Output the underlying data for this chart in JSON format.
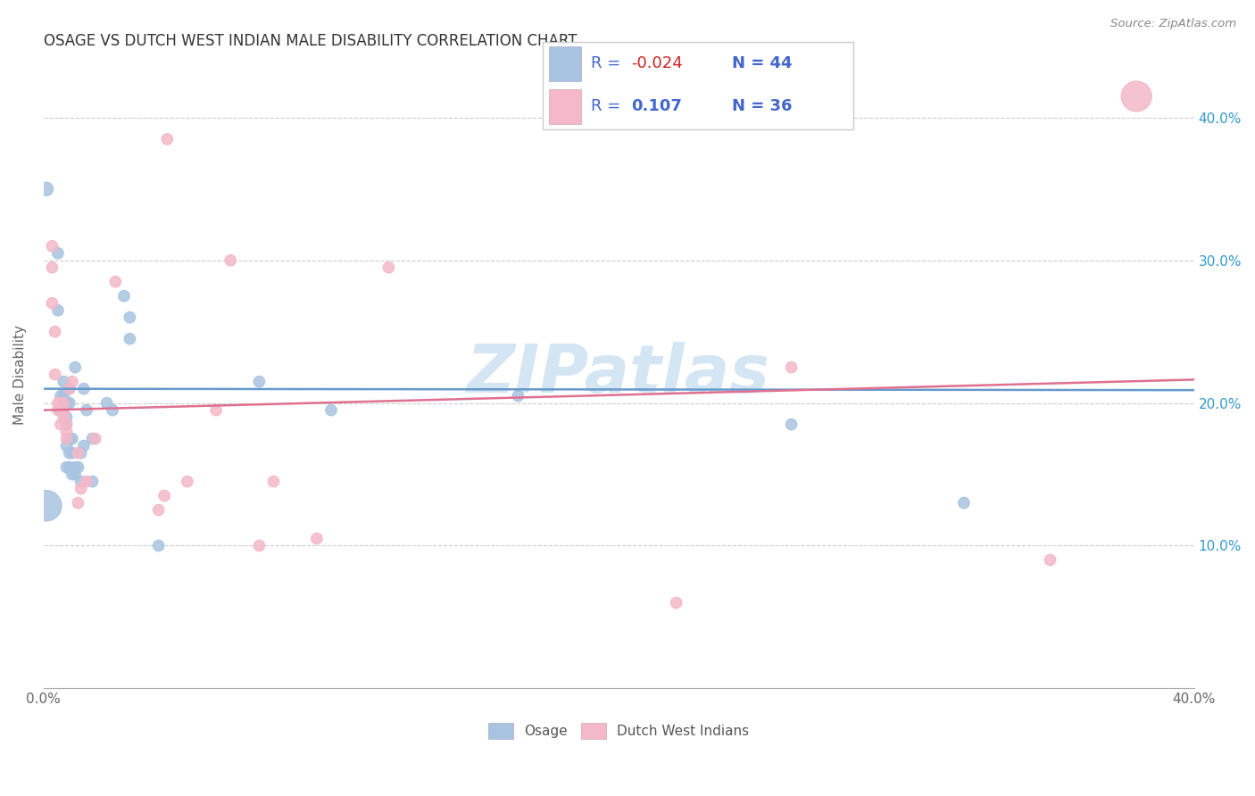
{
  "title": "OSAGE VS DUTCH WEST INDIAN MALE DISABILITY CORRELATION CHART",
  "source": "Source: ZipAtlas.com",
  "ylabel": "Male Disability",
  "xlim": [
    0.0,
    0.4
  ],
  "ylim": [
    0.0,
    0.44
  ],
  "osage_color": "#a8c4e0",
  "dutch_color": "#f4b8c8",
  "osage_line_color": "#6699cc",
  "dutch_line_color": "#e07090",
  "watermark": "ZIPatlas",
  "legend_text_color": "#4466cc",
  "legend_neg_color": "#cc2222",
  "osage_scatter": [
    [
      0.001,
      0.35
    ],
    [
      0.005,
      0.265
    ],
    [
      0.005,
      0.305
    ],
    [
      0.006,
      0.195
    ],
    [
      0.006,
      0.205
    ],
    [
      0.007,
      0.195
    ],
    [
      0.007,
      0.205
    ],
    [
      0.007,
      0.215
    ],
    [
      0.008,
      0.155
    ],
    [
      0.008,
      0.17
    ],
    [
      0.008,
      0.185
    ],
    [
      0.008,
      0.19
    ],
    [
      0.008,
      0.2
    ],
    [
      0.009,
      0.155
    ],
    [
      0.009,
      0.165
    ],
    [
      0.009,
      0.175
    ],
    [
      0.009,
      0.2
    ],
    [
      0.009,
      0.21
    ],
    [
      0.01,
      0.15
    ],
    [
      0.01,
      0.165
    ],
    [
      0.01,
      0.175
    ],
    [
      0.011,
      0.15
    ],
    [
      0.011,
      0.155
    ],
    [
      0.011,
      0.225
    ],
    [
      0.012,
      0.155
    ],
    [
      0.013,
      0.145
    ],
    [
      0.013,
      0.165
    ],
    [
      0.014,
      0.17
    ],
    [
      0.014,
      0.21
    ],
    [
      0.015,
      0.195
    ],
    [
      0.017,
      0.145
    ],
    [
      0.017,
      0.175
    ],
    [
      0.022,
      0.2
    ],
    [
      0.024,
      0.195
    ],
    [
      0.028,
      0.275
    ],
    [
      0.03,
      0.26
    ],
    [
      0.03,
      0.245
    ],
    [
      0.04,
      0.1
    ],
    [
      0.075,
      0.215
    ],
    [
      0.1,
      0.195
    ],
    [
      0.165,
      0.205
    ],
    [
      0.26,
      0.185
    ],
    [
      0.32,
      0.13
    ],
    [
      0.001,
      0.128
    ]
  ],
  "dutch_scatter": [
    [
      0.003,
      0.27
    ],
    [
      0.003,
      0.295
    ],
    [
      0.003,
      0.31
    ],
    [
      0.004,
      0.25
    ],
    [
      0.004,
      0.22
    ],
    [
      0.005,
      0.2
    ],
    [
      0.005,
      0.195
    ],
    [
      0.006,
      0.185
    ],
    [
      0.007,
      0.19
    ],
    [
      0.007,
      0.195
    ],
    [
      0.007,
      0.2
    ],
    [
      0.008,
      0.175
    ],
    [
      0.008,
      0.18
    ],
    [
      0.008,
      0.185
    ],
    [
      0.009,
      0.21
    ],
    [
      0.01,
      0.215
    ],
    [
      0.012,
      0.13
    ],
    [
      0.012,
      0.165
    ],
    [
      0.013,
      0.14
    ],
    [
      0.015,
      0.145
    ],
    [
      0.018,
      0.175
    ],
    [
      0.025,
      0.285
    ],
    [
      0.04,
      0.125
    ],
    [
      0.042,
      0.135
    ],
    [
      0.05,
      0.145
    ],
    [
      0.06,
      0.195
    ],
    [
      0.065,
      0.3
    ],
    [
      0.075,
      0.1
    ],
    [
      0.08,
      0.145
    ],
    [
      0.095,
      0.105
    ],
    [
      0.12,
      0.295
    ],
    [
      0.22,
      0.06
    ],
    [
      0.26,
      0.225
    ],
    [
      0.35,
      0.09
    ],
    [
      0.38,
      0.415
    ],
    [
      0.043,
      0.385
    ]
  ],
  "osage_sizes": [
    120,
    80,
    80,
    80,
    80,
    80,
    80,
    80,
    80,
    80,
    80,
    80,
    80,
    80,
    80,
    80,
    80,
    80,
    80,
    80,
    80,
    80,
    80,
    80,
    80,
    80,
    80,
    80,
    80,
    80,
    80,
    80,
    80,
    80,
    80,
    80,
    80,
    80,
    80,
    80,
    80,
    80,
    80,
    600
  ],
  "dutch_sizes": [
    80,
    80,
    80,
    80,
    80,
    80,
    80,
    80,
    80,
    80,
    80,
    80,
    80,
    80,
    80,
    80,
    80,
    80,
    80,
    80,
    80,
    80,
    80,
    80,
    80,
    80,
    80,
    80,
    80,
    80,
    80,
    80,
    80,
    80,
    600,
    80
  ],
  "osage_trend": [
    -0.024,
    0.202
  ],
  "dutch_trend": [
    0.107,
    0.182
  ]
}
